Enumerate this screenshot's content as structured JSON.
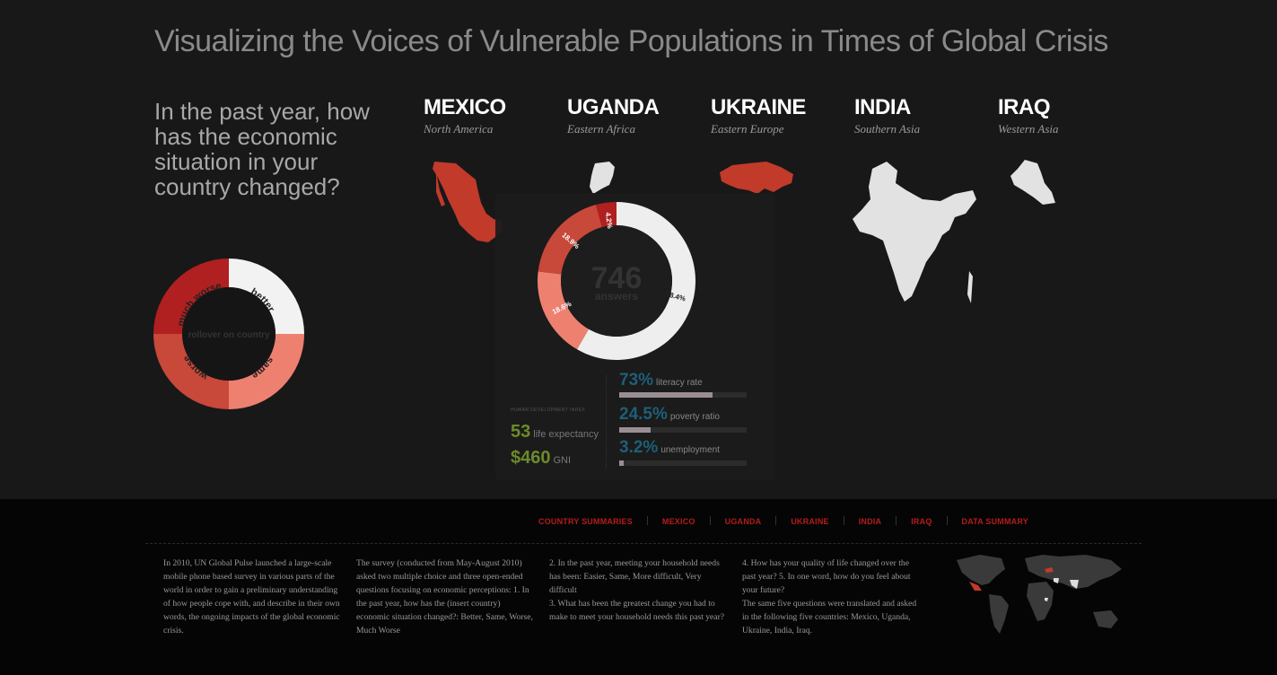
{
  "title": "Visualizing the Voices of Vulnerable Populations in Times of Global Crisis",
  "question": "In the past year, how has the economic situation in your country changed?",
  "legend": {
    "center_text": "rollover on country",
    "labels": [
      "much worse",
      "better",
      "same",
      "worse"
    ]
  },
  "countries": [
    {
      "name": "MEXICO",
      "region": "North America"
    },
    {
      "name": "UGANDA",
      "region": "Eastern Africa"
    },
    {
      "name": "UKRAINE",
      "region": "Eastern Europe"
    },
    {
      "name": "INDIA",
      "region": "Southern Asia"
    },
    {
      "name": "IRAQ",
      "region": "Western Asia"
    }
  ],
  "chart_data": {
    "type": "pie",
    "total": "746",
    "total_label": "answers",
    "slices": [
      {
        "label": "better",
        "value": 58.4,
        "text": "58.4%",
        "color": "#eeeeee"
      },
      {
        "label": "same",
        "value": 18.6,
        "text": "18.6%",
        "color": "#ee8070"
      },
      {
        "label": "worse",
        "value": 18.9,
        "text": "18.9%",
        "color": "#c8483a"
      },
      {
        "label": "much worse",
        "value": 4.2,
        "text": "4.2%",
        "color": "#b02020"
      }
    ]
  },
  "hdi": {
    "label": "HUMAN DEVELOPMENT INDEX",
    "life_expectancy": {
      "value": "53",
      "label": "life expectancy"
    },
    "gni": {
      "value": "$460",
      "label": "GNI"
    }
  },
  "stats": [
    {
      "value": "73%",
      "label": "literacy rate",
      "fraction": 0.73
    },
    {
      "value": "24.5%",
      "label": "poverty ratio",
      "fraction": 0.245
    },
    {
      "value": "3.2%",
      "label": "unemployment",
      "fraction": 0.032
    }
  ],
  "nav": [
    "COUNTRY SUMMARIES",
    "MEXICO",
    "UGANDA",
    "UKRAINE",
    "INDIA",
    "IRAQ",
    "DATA SUMMARY"
  ],
  "colors": {
    "better": "#eeeeee",
    "same": "#ee8070",
    "worse": "#c8483a",
    "much_worse": "#b02020",
    "nav": "#b41c1c",
    "hdi": "#6c8a2a",
    "stat": "#1d5f78"
  },
  "footer": {
    "col1": "In 2010, UN Global Pulse launched a large-scale mobile phone based survey in various parts of the world in order to gain a preliminary understanding of how people cope with, and describe in their own words, the ongoing impacts of the global economic crisis.",
    "col2": "The survey (conducted from May-August 2010) asked two multiple choice and three open-ended questions focusing on economic perceptions: 1. In the past year, how has the (insert country) economic situation changed?: Better, Same, Worse, Much Worse",
    "col3a": "2. In the past year, meeting your household needs has been: Easier, Same, More difficult, Very difficult",
    "col3b": "3. What has been the greatest change you had to make to meet your household needs this past year?",
    "col4a": "4. How has your quality of life changed over the past year? 5. In one word, how do you feel about your future?",
    "col4b": "The same five questions were translated and asked in the following five countries: Mexico, Uganda, Ukraine, India, Iraq."
  }
}
